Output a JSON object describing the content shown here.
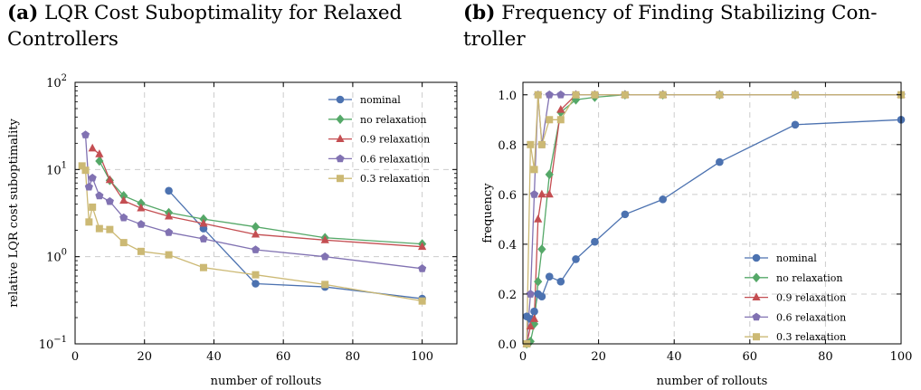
{
  "panels": [
    {
      "tag": "(a)",
      "title_lines": [
        "LQR Cost Suboptimality for Relaxed",
        "Controllers"
      ]
    },
    {
      "tag": "(b)",
      "title_lines": [
        "Frequency of Finding Stabilizing Con-",
        "troller"
      ]
    }
  ],
  "chart_data": [
    {
      "type": "line",
      "xlabel": "number of rollouts",
      "ylabel": "relative LQR cost suboptimality",
      "xlim": [
        0,
        110
      ],
      "ylim": [
        0.1,
        100
      ],
      "yscale": "log",
      "xticks": [
        0,
        20,
        40,
        60,
        80,
        100
      ],
      "yticks": [
        0.1,
        1,
        10,
        100
      ],
      "ytick_labels": [
        [
          "10",
          "−1"
        ],
        [
          "10",
          "0"
        ],
        [
          "10",
          "1"
        ],
        [
          "10",
          "2"
        ]
      ],
      "grid": true,
      "legend_position": "top-right",
      "series": [
        {
          "name": "nominal",
          "color": "#4c72b0",
          "marker": "circle",
          "x": [
            27,
            37,
            52,
            72,
            100
          ],
          "y": [
            5.7,
            2.1,
            0.49,
            0.45,
            0.33
          ]
        },
        {
          "name": "no relaxation",
          "color": "#55a868",
          "marker": "diamond",
          "x": [
            7,
            10,
            14,
            19,
            27,
            37,
            52,
            72,
            100
          ],
          "y": [
            12.5,
            7.5,
            5.0,
            4.1,
            3.2,
            2.7,
            2.2,
            1.65,
            1.4
          ]
        },
        {
          "name": "0.9 relaxation",
          "color": "#c44e52",
          "marker": "triangle",
          "x": [
            5,
            7,
            10,
            14,
            19,
            27,
            37,
            52,
            72,
            100
          ],
          "y": [
            17.5,
            15.0,
            7.6,
            4.4,
            3.6,
            2.9,
            2.4,
            1.8,
            1.55,
            1.3
          ]
        },
        {
          "name": "0.6 relaxation",
          "color": "#8172b2",
          "marker": "pentagon",
          "x": [
            3,
            4,
            5,
            7,
            10,
            14,
            19,
            27,
            37,
            52,
            72,
            100
          ],
          "y": [
            25,
            6.3,
            8.0,
            5.0,
            4.3,
            2.8,
            2.35,
            1.9,
            1.6,
            1.2,
            1.0,
            0.73
          ]
        },
        {
          "name": "0.3 relaxation",
          "color": "#ccb974",
          "marker": "square",
          "x": [
            2,
            3,
            4,
            5,
            7,
            10,
            14,
            19,
            27,
            37,
            52,
            72,
            100
          ],
          "y": [
            11,
            9.8,
            2.5,
            3.7,
            2.1,
            2.05,
            1.45,
            1.15,
            1.05,
            0.75,
            0.62,
            0.48,
            0.31
          ]
        }
      ]
    },
    {
      "type": "line",
      "xlabel": "number of rollouts",
      "ylabel": "frequency",
      "xlim": [
        0,
        100
      ],
      "ylim": [
        0,
        1.05
      ],
      "yscale": "linear",
      "xticks": [
        0,
        20,
        40,
        60,
        80,
        100
      ],
      "yticks": [
        0.0,
        0.2,
        0.4,
        0.6,
        0.8,
        1.0
      ],
      "ytick_labels": [
        "0.0",
        "0.2",
        "0.4",
        "0.6",
        "0.8",
        "1.0"
      ],
      "grid": true,
      "legend_position": "bottom-right",
      "series": [
        {
          "name": "nominal",
          "color": "#4c72b0",
          "marker": "circle",
          "x": [
            1,
            2,
            3,
            4,
            5,
            7,
            10,
            14,
            19,
            27,
            37,
            52,
            72,
            100
          ],
          "y": [
            0.11,
            0.1,
            0.13,
            0.2,
            0.19,
            0.27,
            0.25,
            0.34,
            0.41,
            0.52,
            0.58,
            0.73,
            0.88,
            0.9
          ]
        },
        {
          "name": "no relaxation",
          "color": "#55a868",
          "marker": "diamond",
          "x": [
            1,
            2,
            3,
            4,
            5,
            7,
            10,
            14,
            19,
            27,
            37,
            52,
            72,
            100
          ],
          "y": [
            0.0,
            0.01,
            0.08,
            0.25,
            0.38,
            0.68,
            0.93,
            0.98,
            0.99,
            1.0,
            1.0,
            1.0,
            1.0,
            1.0
          ]
        },
        {
          "name": "0.9 relaxation",
          "color": "#c44e52",
          "marker": "triangle",
          "x": [
            1,
            2,
            3,
            4,
            5,
            7,
            10,
            14,
            19,
            27,
            37,
            52,
            72,
            100
          ],
          "y": [
            0.0,
            0.07,
            0.1,
            0.5,
            0.6,
            0.6,
            0.94,
            1.0,
            1.0,
            1.0,
            1.0,
            1.0,
            1.0,
            1.0
          ]
        },
        {
          "name": "0.6 relaxation",
          "color": "#8172b2",
          "marker": "pentagon",
          "x": [
            1,
            2,
            3,
            4,
            5,
            7,
            10,
            14,
            19,
            27,
            37,
            52,
            72,
            100
          ],
          "y": [
            0.0,
            0.2,
            0.6,
            1.0,
            0.8,
            1.0,
            1.0,
            1.0,
            1.0,
            1.0,
            1.0,
            1.0,
            1.0,
            1.0
          ]
        },
        {
          "name": "0.3 relaxation",
          "color": "#ccb974",
          "marker": "square",
          "x": [
            1,
            2,
            3,
            4,
            5,
            7,
            10,
            14,
            19,
            27,
            37,
            52,
            72,
            100
          ],
          "y": [
            0.0,
            0.8,
            0.7,
            1.0,
            0.8,
            0.9,
            0.9,
            1.0,
            1.0,
            1.0,
            1.0,
            1.0,
            1.0,
            1.0
          ]
        }
      ]
    }
  ]
}
